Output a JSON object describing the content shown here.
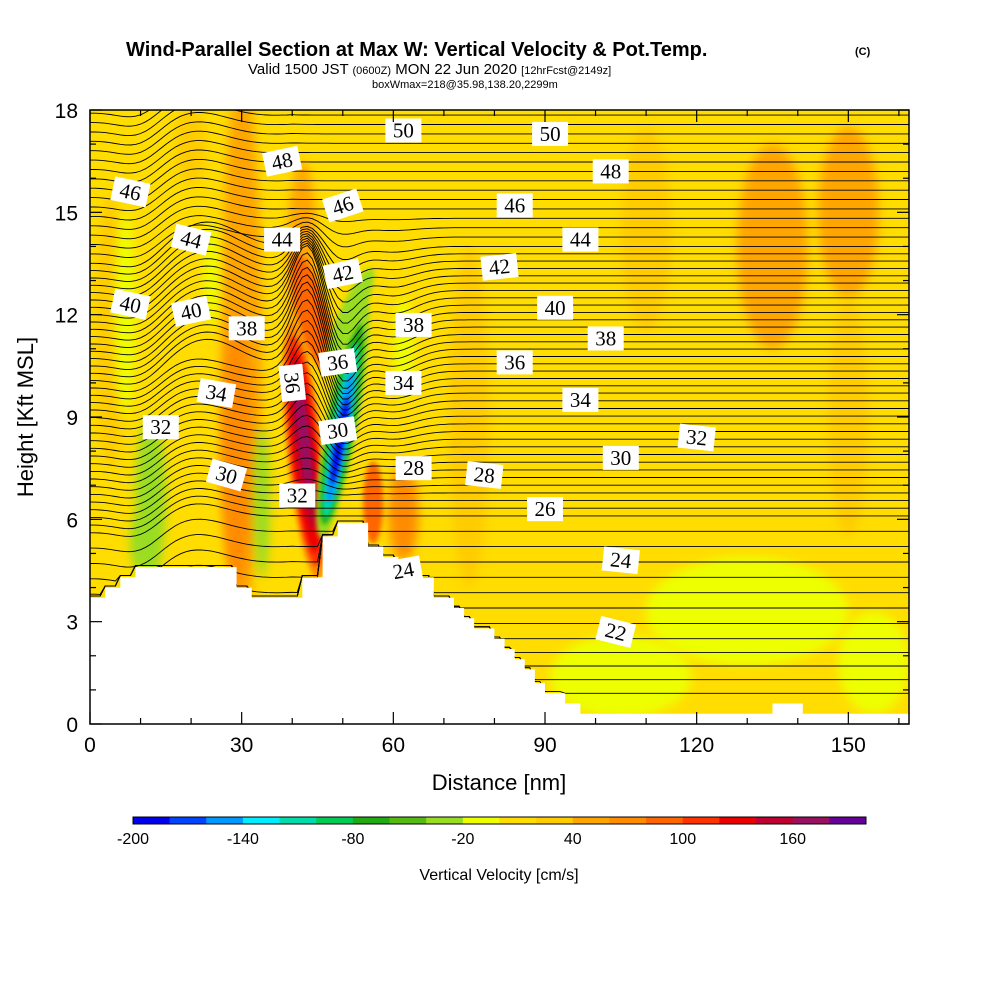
{
  "title": {
    "main": "Wind-Parallel Section at Max W: Vertical Velocity & Pot.Temp.",
    "copyright": "(C)",
    "valid_prefix": "Valid 1500 JST",
    "valid_utc": "(0600Z)",
    "valid_date": "MON 22 Jun 2020",
    "forecast": "[12hrFcst@2149z]",
    "box": "boxWmax=218@35.98,138.20,2299m"
  },
  "chart_data": {
    "type": "heatmap",
    "title": "Wind-Parallel Section at Max W: Vertical Velocity & Pot.Temp.",
    "xlabel": "Distance [nm]",
    "ylabel": "Height [Kft MSL]",
    "xlim": [
      0,
      162
    ],
    "ylim": [
      0,
      18
    ],
    "x_ticks": [
      0,
      30,
      60,
      90,
      120,
      150
    ],
    "y_ticks": [
      0,
      3,
      6,
      9,
      12,
      15,
      18
    ],
    "x_tick_labels": [
      "0",
      "30",
      "60",
      "90",
      "120",
      "150"
    ],
    "y_tick_labels": [
      "0",
      "3",
      "6",
      "9",
      "12",
      "15",
      "18"
    ],
    "background_field": "vertical velocity, mostly weak ascent (0 to 20 cm/s)",
    "updraft_max_cm_s": 170,
    "downdraft_min_cm_s": -200,
    "terrain_profile": [
      [
        0,
        3.7
      ],
      [
        3,
        3.7
      ],
      [
        3,
        4.0
      ],
      [
        6,
        4.0
      ],
      [
        6,
        4.3
      ],
      [
        9,
        4.3
      ],
      [
        9,
        4.6
      ],
      [
        29,
        4.6
      ],
      [
        29,
        4.0
      ],
      [
        32,
        4.0
      ],
      [
        32,
        3.7
      ],
      [
        42,
        3.7
      ],
      [
        42,
        4.3
      ],
      [
        46,
        4.3
      ],
      [
        46,
        5.5
      ],
      [
        49,
        5.5
      ],
      [
        49,
        5.9
      ],
      [
        55,
        5.9
      ],
      [
        55,
        5.2
      ],
      [
        58,
        5.2
      ],
      [
        58,
        4.9
      ],
      [
        61,
        4.9
      ],
      [
        61,
        4.3
      ],
      [
        68,
        4.3
      ],
      [
        68,
        3.7
      ],
      [
        72,
        3.7
      ],
      [
        72,
        3.4
      ],
      [
        74,
        3.4
      ],
      [
        74,
        3.1
      ],
      [
        76,
        3.1
      ],
      [
        76,
        2.8
      ],
      [
        80,
        2.8
      ],
      [
        80,
        2.5
      ],
      [
        82,
        2.5
      ],
      [
        82,
        2.2
      ],
      [
        84,
        2.2
      ],
      [
        84,
        1.9
      ],
      [
        86,
        1.9
      ],
      [
        86,
        1.6
      ],
      [
        88,
        1.6
      ],
      [
        88,
        1.2
      ],
      [
        90,
        1.2
      ],
      [
        90,
        0.9
      ],
      [
        94,
        0.9
      ],
      [
        94,
        0.6
      ],
      [
        97,
        0.6
      ],
      [
        97,
        0.3
      ],
      [
        135,
        0.3
      ],
      [
        135,
        0.6
      ],
      [
        141,
        0.6
      ],
      [
        141,
        0.3
      ],
      [
        162,
        0.3
      ]
    ],
    "colorbar": {
      "label": "Vertical Velocity [cm/s]",
      "levels": [
        -200,
        -180,
        -160,
        -140,
        -120,
        -100,
        -80,
        -60,
        -40,
        -20,
        0,
        20,
        40,
        60,
        80,
        100,
        120,
        140,
        160,
        180
      ],
      "tick_labels": [
        "-200",
        "-140",
        "-80",
        "-20",
        "40",
        "100",
        "160"
      ],
      "tick_values": [
        -200,
        -140,
        -80,
        -20,
        40,
        100,
        160
      ],
      "colors": [
        "#0000ee",
        "#0044ff",
        "#0099ff",
        "#00eeff",
        "#00ddaa",
        "#00cc55",
        "#22aa11",
        "#55bb11",
        "#99dd22",
        "#eeff00",
        "#ffdd00",
        "#ffcc00",
        "#ffa500",
        "#ff8c00",
        "#ff6600",
        "#ff3300",
        "#ee0000",
        "#c00030",
        "#991060",
        "#660099"
      ]
    },
    "vertical_velocity_features": [
      {
        "name": "strong updraft",
        "x": 43,
        "y_range": [
          5.0,
          11.5
        ],
        "max": 170
      },
      {
        "name": "strong downdraft",
        "x": 50,
        "y_range": [
          5.8,
          11.5
        ],
        "min": -200
      },
      {
        "name": "weak downdraft",
        "x": 12,
        "y_range": [
          4.6,
          9.0
        ],
        "min": -40
      },
      {
        "name": "weak downdraft",
        "x": 34,
        "y_range": [
          4.6,
          8.5
        ],
        "min": -40
      },
      {
        "name": "weak ascent band",
        "x": 30,
        "y_range": [
          0,
          18
        ],
        "max": 60
      },
      {
        "name": "weak ascent band",
        "x": 62,
        "y_range": [
          4.5,
          8
        ],
        "max": 60
      },
      {
        "name": "weak ascent region",
        "x": 135,
        "y_range": [
          12,
          16
        ],
        "max": 40
      }
    ],
    "isentropes": {
      "quantity": "potential temperature",
      "interval": 0.5,
      "levels_labeled": [
        22,
        24,
        26,
        28,
        30,
        32,
        34,
        36,
        38,
        40,
        42,
        44,
        46,
        48,
        50
      ],
      "labels": [
        {
          "text": "50",
          "x": 62,
          "y": 17.4,
          "angle": 0
        },
        {
          "text": "50",
          "x": 91,
          "y": 17.3,
          "angle": 0
        },
        {
          "text": "48",
          "x": 38,
          "y": 16.5,
          "angle": -12
        },
        {
          "text": "48",
          "x": 103,
          "y": 16.2,
          "angle": 0
        },
        {
          "text": "46",
          "x": 8,
          "y": 15.6,
          "angle": 12
        },
        {
          "text": "46",
          "x": 50,
          "y": 15.2,
          "angle": -18
        },
        {
          "text": "46",
          "x": 84,
          "y": 15.2,
          "angle": 0
        },
        {
          "text": "44",
          "x": 20,
          "y": 14.2,
          "angle": 14
        },
        {
          "text": "44",
          "x": 38,
          "y": 14.2,
          "angle": 0
        },
        {
          "text": "44",
          "x": 97,
          "y": 14.2,
          "angle": 0
        },
        {
          "text": "42",
          "x": 50,
          "y": 13.2,
          "angle": -12
        },
        {
          "text": "42",
          "x": 81,
          "y": 13.4,
          "angle": -6
        },
        {
          "text": "40",
          "x": 8,
          "y": 12.3,
          "angle": 12
        },
        {
          "text": "40",
          "x": 20,
          "y": 12.1,
          "angle": -12
        },
        {
          "text": "40",
          "x": 92,
          "y": 12.2,
          "angle": 0
        },
        {
          "text": "38",
          "x": 31,
          "y": 11.6,
          "angle": 0
        },
        {
          "text": "38",
          "x": 64,
          "y": 11.7,
          "angle": 0
        },
        {
          "text": "38",
          "x": 102,
          "y": 11.3,
          "angle": 0
        },
        {
          "text": "36",
          "x": 40,
          "y": 10.0,
          "angle": 84
        },
        {
          "text": "36",
          "x": 49,
          "y": 10.6,
          "angle": -8
        },
        {
          "text": "36",
          "x": 84,
          "y": 10.6,
          "angle": 0
        },
        {
          "text": "34",
          "x": 25,
          "y": 9.7,
          "angle": 10
        },
        {
          "text": "34",
          "x": 62,
          "y": 10.0,
          "angle": 0
        },
        {
          "text": "34",
          "x": 97,
          "y": 9.5,
          "angle": 0
        },
        {
          "text": "32",
          "x": 14,
          "y": 8.7,
          "angle": 0
        },
        {
          "text": "32",
          "x": 120,
          "y": 8.4,
          "angle": 6
        },
        {
          "text": "30",
          "x": 49,
          "y": 8.6,
          "angle": -8
        },
        {
          "text": "30",
          "x": 27,
          "y": 7.3,
          "angle": 16
        },
        {
          "text": "30",
          "x": 105,
          "y": 7.8,
          "angle": 0
        },
        {
          "text": "28",
          "x": 64,
          "y": 7.5,
          "angle": 0
        },
        {
          "text": "28",
          "x": 78,
          "y": 7.3,
          "angle": 6
        },
        {
          "text": "32",
          "x": 41,
          "y": 6.7,
          "angle": 0
        },
        {
          "text": "26",
          "x": 90,
          "y": 6.3,
          "angle": 0
        },
        {
          "text": "24",
          "x": 62,
          "y": 4.5,
          "angle": -10
        },
        {
          "text": "24",
          "x": 105,
          "y": 4.8,
          "angle": 6
        },
        {
          "text": "22",
          "x": 104,
          "y": 2.7,
          "angle": 14
        }
      ]
    }
  }
}
